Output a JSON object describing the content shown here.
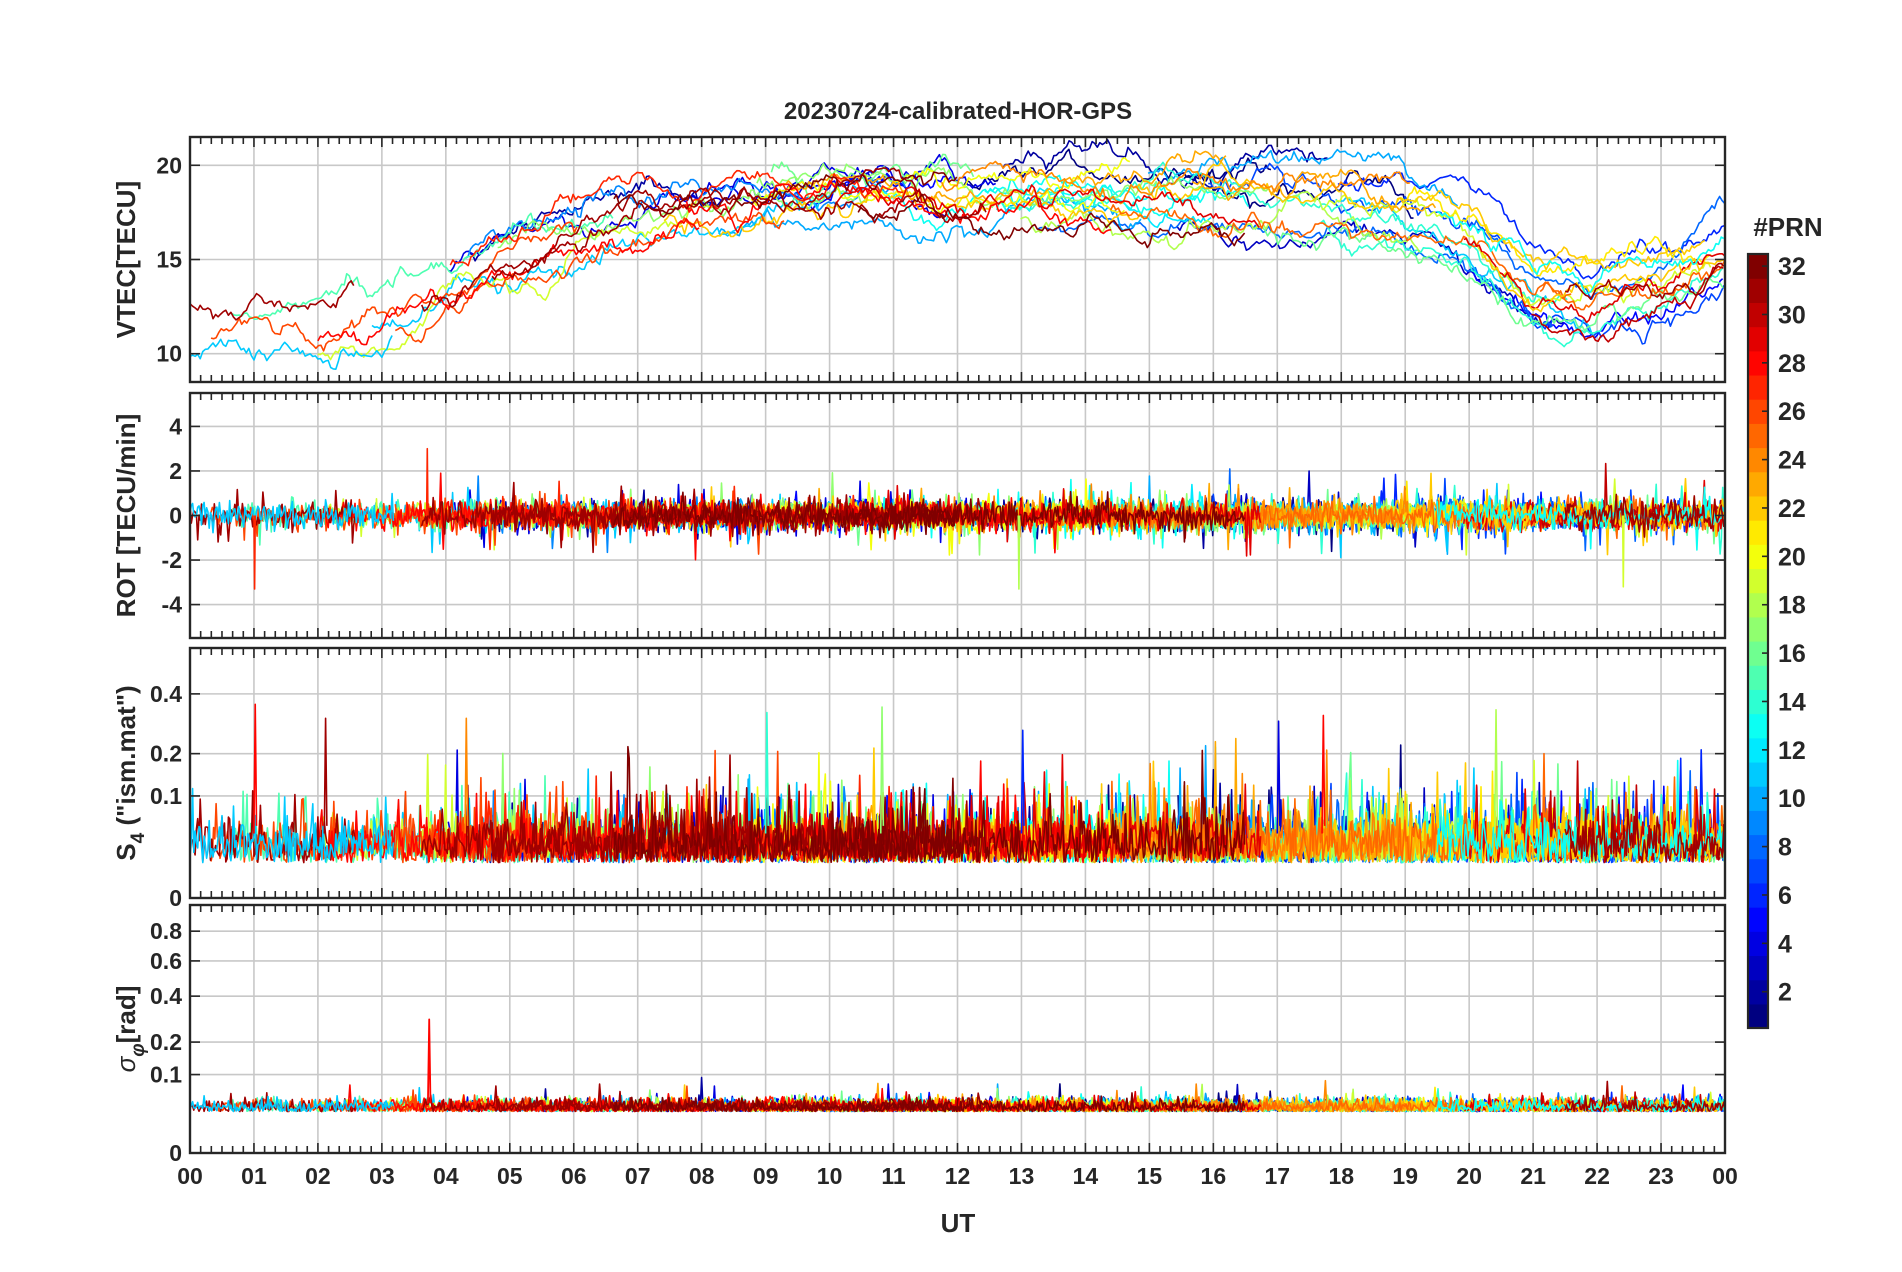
{
  "chart_data": {
    "type": "line",
    "title": "20230724-calibrated-HOR-GPS",
    "xlabel": "UT",
    "x_range_hours": [
      0,
      24
    ],
    "x_tick_labels": [
      "00",
      "01",
      "02",
      "03",
      "04",
      "05",
      "06",
      "07",
      "08",
      "09",
      "10",
      "11",
      "12",
      "13",
      "14",
      "15",
      "16",
      "17",
      "18",
      "19",
      "20",
      "21",
      "22",
      "23",
      "00"
    ],
    "grid": true,
    "series_count": 32,
    "panels": [
      {
        "id": "vtec",
        "ylabel": "VTEC[TECU]",
        "ylim": [
          8.5,
          21.5
        ],
        "yticks": [
          10,
          15,
          20
        ],
        "ytick_labels": [
          "10",
          "15",
          "20"
        ],
        "kind": "vtec"
      },
      {
        "id": "rot",
        "ylabel": "ROT [TECU/min]",
        "ylim": [
          -5.5,
          5.5
        ],
        "yticks": [
          -4,
          -2,
          0,
          2,
          4
        ],
        "ytick_labels": [
          "-4",
          "-2",
          "0",
          "2",
          "4"
        ],
        "kind": "rot"
      },
      {
        "id": "s4",
        "ylabel_main": "S",
        "ylabel_sub": "4",
        "ylabel_rest": " (\"ism.mat\")",
        "ylim": [
          0,
          0.6
        ],
        "yticks": [
          0,
          0.1,
          0.2,
          0.4
        ],
        "ytick_labels": [
          "0",
          "0.1",
          "0.2",
          "0.4"
        ],
        "scale": "sqrt",
        "kind": "s4"
      },
      {
        "id": "sigma_phi",
        "ylabel_main": "σ",
        "ylabel_sub": "φ",
        "ylabel_rest": "[rad]",
        "ylim": [
          0,
          1.0
        ],
        "yticks": [
          0,
          0.1,
          0.2,
          0.4,
          0.6,
          0.8
        ],
        "ytick_labels": [
          "0",
          "0.1",
          "0.2",
          "0.4",
          "0.6",
          "0.8"
        ],
        "scale": "sqrt",
        "kind": "sigma"
      }
    ],
    "colorbar": {
      "title": "#PRN",
      "range": [
        1,
        32
      ],
      "ticks": [
        2,
        4,
        6,
        8,
        10,
        12,
        14,
        16,
        18,
        20,
        22,
        24,
        26,
        28,
        30,
        32
      ],
      "tick_labels": [
        "2",
        "4",
        "6",
        "8",
        "10",
        "12",
        "14",
        "16",
        "18",
        "20",
        "22",
        "24",
        "26",
        "28",
        "30",
        "32"
      ],
      "colormap": "jet"
    },
    "notes": {
      "vtec_typical": "about 10-13 TECU at 00-01 UT, rising to 17-21 TECU around 10-18 UT, dropping to ~11-14 TECU near 21 UT, ~15-17 TECU by 24 UT",
      "rot_typical": "mostly within +/-1 TECU/min, spikes to about +3 near 03.7 UT and -3.3 near 01 and 13 UT",
      "s4_typical": "background ~0.02-0.08 with spikes up to ~0.36 near 01 UT",
      "sigma_typical": "~0.03-0.06 rad, spike ~0.29 at 03.7 UT"
    }
  }
}
